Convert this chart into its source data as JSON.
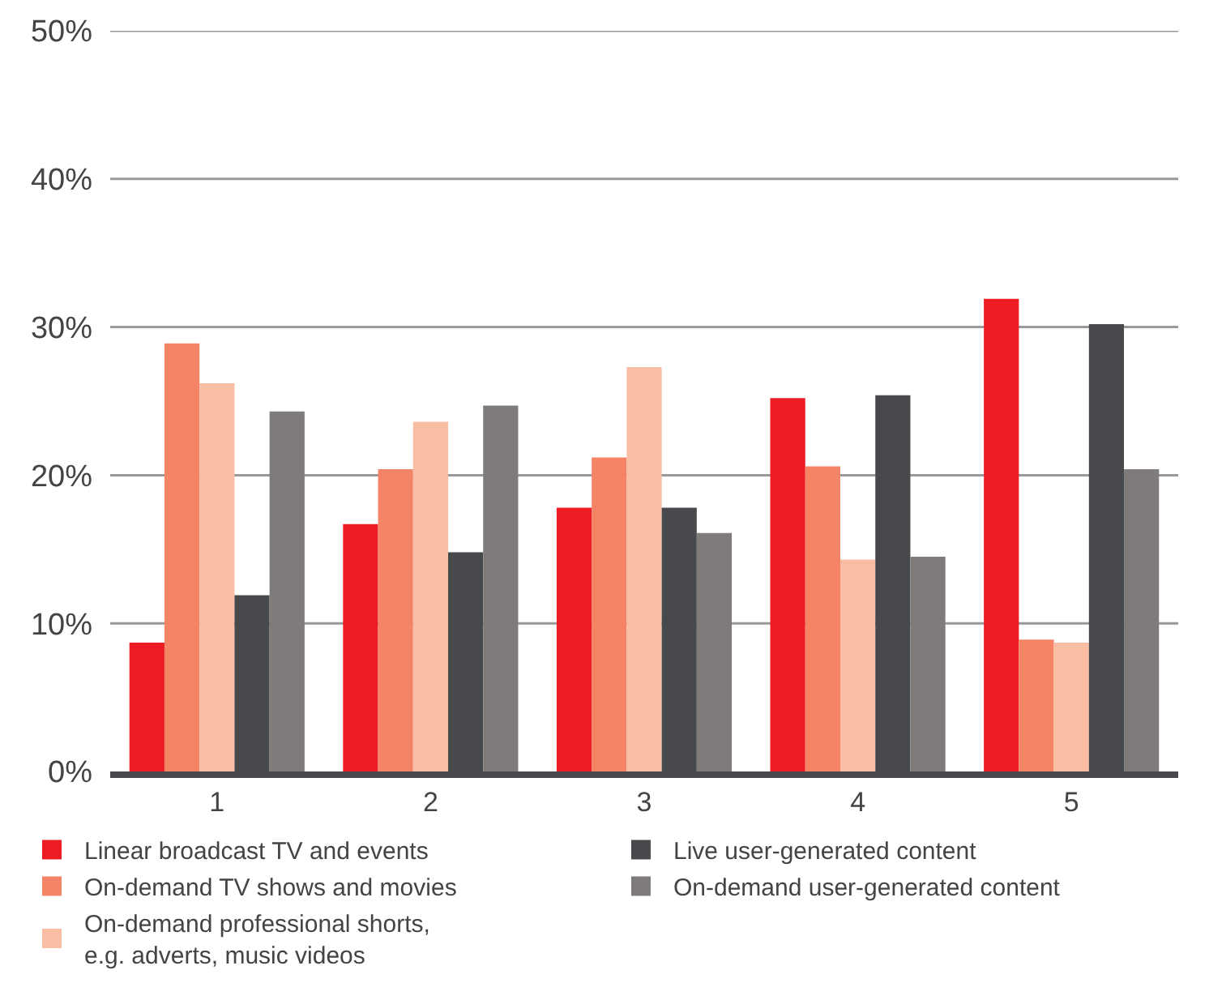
{
  "chart_data": {
    "type": "bar",
    "categories": [
      "1",
      "2",
      "3",
      "4",
      "5"
    ],
    "series": [
      {
        "name": "Linear broadcast TV and events",
        "color": "#ed1c24",
        "values": [
          8.7,
          16.7,
          17.8,
          25.2,
          31.9
        ]
      },
      {
        "name": "On-demand TV shows and movies",
        "color": "#f58466",
        "values": [
          28.9,
          20.4,
          21.2,
          20.6,
          8.9
        ]
      },
      {
        "name": "On-demand professional shorts, e.g. adverts, music videos",
        "color": "#f9bda4",
        "values": [
          26.2,
          23.6,
          27.3,
          14.3,
          8.7
        ]
      },
      {
        "name": "Live user-generated content",
        "color": "#48494d",
        "values": [
          11.9,
          14.8,
          17.8,
          25.4,
          30.2
        ]
      },
      {
        "name": "On-demand user-generated content",
        "color": "#807b7b",
        "values": [
          24.3,
          24.7,
          16.1,
          14.5,
          20.4
        ]
      }
    ],
    "ylim": [
      0,
      50
    ],
    "yticks": [
      {
        "value": 0,
        "label": "0%"
      },
      {
        "value": 10,
        "label": "10%"
      },
      {
        "value": 20,
        "label": "20%"
      },
      {
        "value": 30,
        "label": "30%"
      },
      {
        "value": 40,
        "label": "40%"
      },
      {
        "value": 50,
        "label": "50%"
      }
    ],
    "grid": "y",
    "legend": "bottom"
  }
}
